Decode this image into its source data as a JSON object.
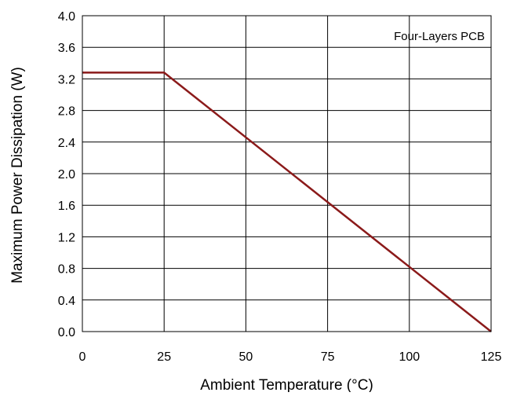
{
  "chart_data": {
    "type": "line",
    "title": "",
    "xlabel": "Ambient Temperature (°C)",
    "ylabel": "Maximum Power Dissipation (W)",
    "xlim": [
      0,
      125
    ],
    "ylim": [
      0,
      4.0
    ],
    "x_ticks": [
      0,
      25,
      50,
      75,
      100,
      125
    ],
    "x_tick_labels": [
      "0",
      "25",
      "50",
      "75",
      "100",
      "125"
    ],
    "y_ticks": [
      0,
      0.4,
      0.8,
      1.2,
      1.6,
      2.0,
      2.4,
      2.8,
      3.2,
      3.6,
      4.0
    ],
    "y_tick_labels": [
      "0.0",
      "0.4",
      "0.8",
      "1.2",
      "1.6",
      "2.0",
      "2.4",
      "2.8",
      "3.2",
      "3.6",
      "4.0"
    ],
    "grid": true,
    "annotation": "Four-Layers PCB",
    "annotation_position": "top-right",
    "line_color": "#8b1a1a",
    "series": [
      {
        "x": [
          0,
          25,
          125
        ],
        "y": [
          3.28,
          3.28,
          0
        ]
      }
    ]
  }
}
